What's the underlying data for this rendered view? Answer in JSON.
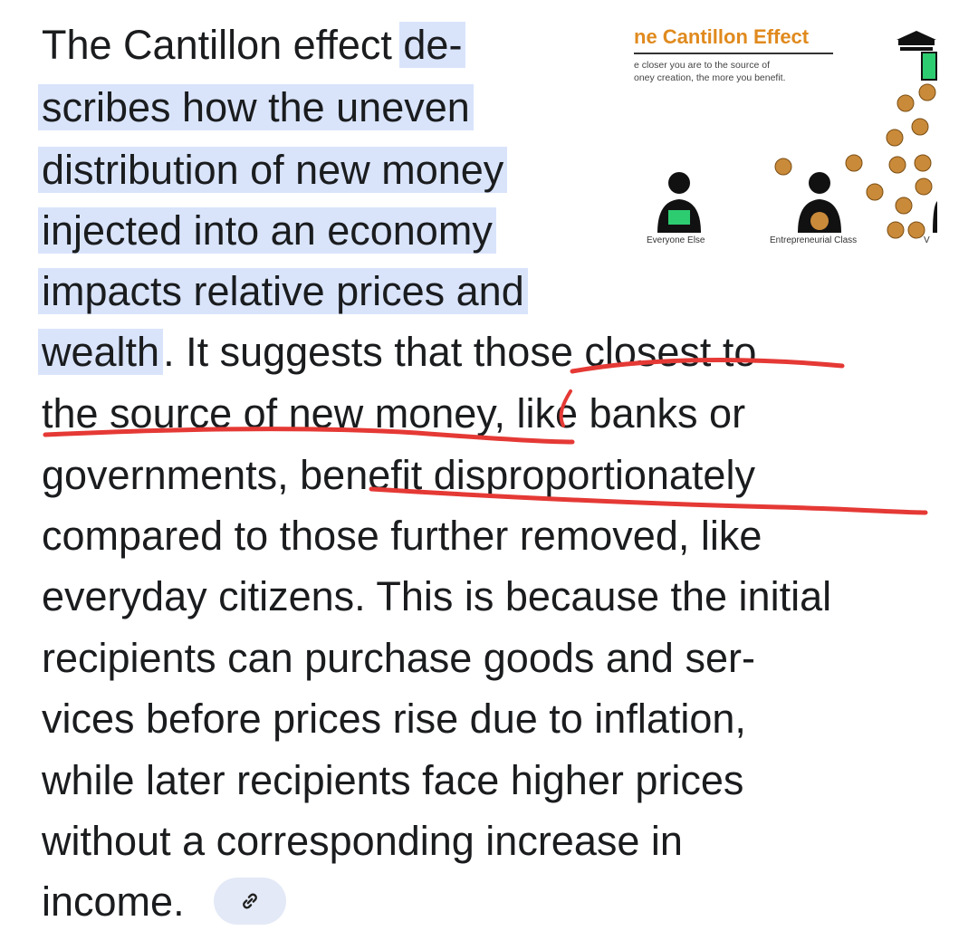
{
  "paragraph": {
    "lines": [
      {
        "pre": "The Cantillon effect ",
        "hl": "de-"
      },
      {
        "hl": "scribes how the uneven"
      },
      {
        "hl": "distribution of new money"
      },
      {
        "hl": "injected into an economy"
      },
      {
        "hl": "impacts relative prices and"
      },
      {
        "hl": "wealth",
        "post": ". It suggests that those closest to"
      },
      {
        "post": "the source of new money, like banks or"
      },
      {
        "post": "governments, benefit disproportionately"
      },
      {
        "post": "compared to those further removed, like"
      },
      {
        "post": "everyday citizens. This is because the initial"
      },
      {
        "post": "recipients can purchase goods and ser-"
      },
      {
        "post": "vices before prices rise due to inflation,"
      },
      {
        "post": "while later recipients face higher prices"
      },
      {
        "post": "without a corresponding increase in"
      },
      {
        "post": "income."
      }
    ]
  },
  "thumbnail": {
    "title": "ne Cantillon Effect",
    "subtitle_line1": "e closer you are to the source of",
    "subtitle_line2": "oney creation, the more you benefit.",
    "caption_everyone": "Everyone Else",
    "caption_entrepreneurial": "Entrepreneurial Class",
    "caption_partial": "V"
  },
  "source_chip": {
    "icon": "link-icon"
  },
  "colors": {
    "highlight": "#d9e4fb",
    "annotation": "#e53935",
    "chip": "#e3e9f6",
    "thumb_title": "#e08a1e"
  }
}
